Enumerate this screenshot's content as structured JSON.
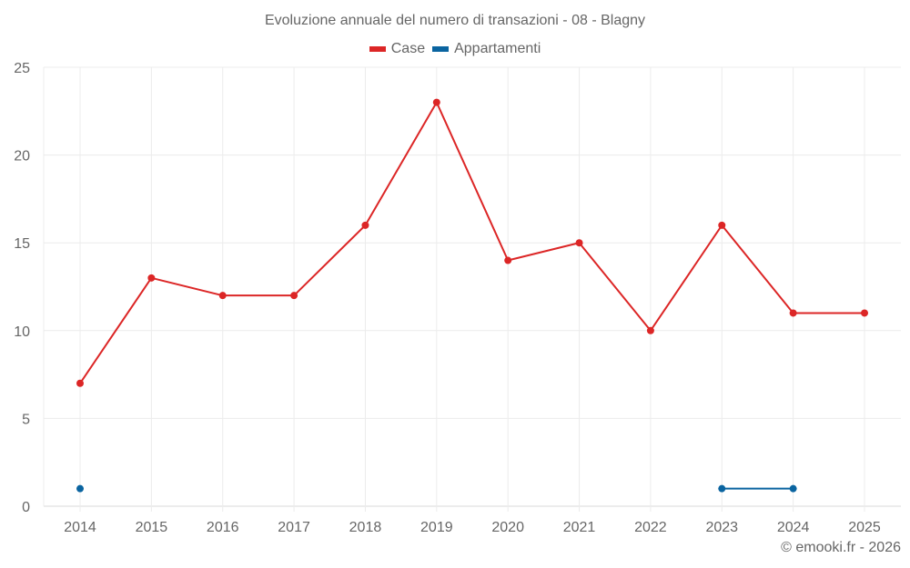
{
  "title": "Evoluzione annuale del numero di transazioni - 08 - Blagny",
  "legend": [
    {
      "label": "Case",
      "color": "#dc2626"
    },
    {
      "label": "Appartamenti",
      "color": "#0a64a0"
    }
  ],
  "credit": "© emooki.fr - 2026",
  "chart_data": {
    "type": "line",
    "title": "Evoluzione annuale del numero di transazioni - 08 - Blagny",
    "xlabel": "",
    "ylabel": "",
    "categories": [
      "2014",
      "2015",
      "2016",
      "2017",
      "2018",
      "2019",
      "2020",
      "2021",
      "2022",
      "2023",
      "2024",
      "2025"
    ],
    "series": [
      {
        "name": "Case",
        "color": "#dc2626",
        "values": [
          7,
          13,
          12,
          12,
          16,
          23,
          14,
          15,
          10,
          16,
          11,
          11
        ]
      },
      {
        "name": "Appartamenti",
        "color": "#0a64a0",
        "values": [
          1,
          null,
          null,
          null,
          null,
          null,
          null,
          null,
          null,
          1,
          1,
          null
        ]
      }
    ],
    "ylim": [
      0,
      25
    ],
    "yticks": [
      0,
      5,
      10,
      15,
      20,
      25
    ],
    "grid": true,
    "legend_position": "top"
  }
}
